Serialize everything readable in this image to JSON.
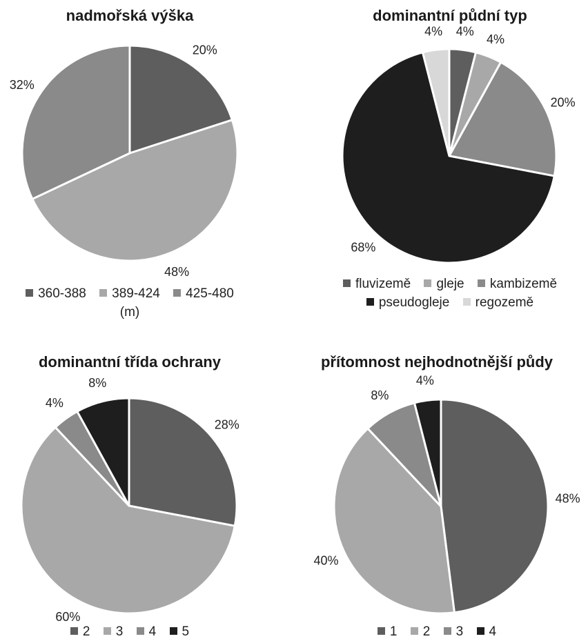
{
  "colors": {
    "dark_gray": "#5e5e5e",
    "light_gray": "#a8a8a8",
    "mid_gray": "#8a8a8a",
    "black": "#1e1e1e",
    "very_light_gray": "#d8d8d8",
    "slice_border": "#ffffff"
  },
  "chart_data": [
    {
      "type": "pie",
      "title": "nadmořská výška",
      "legend_note": "(m)",
      "legend_position": "bottom",
      "categories": [
        "360-388",
        "389-424",
        "425-480"
      ],
      "values": [
        20,
        48,
        32
      ],
      "labels": [
        "20%",
        "48%",
        "32%"
      ],
      "colors": [
        "#5e5e5e",
        "#a8a8a8",
        "#8a8a8a"
      ]
    },
    {
      "type": "pie",
      "title": "dominantní půdní typ",
      "legend_position": "bottom",
      "categories": [
        "fluvizemě",
        "gleje",
        "kambizemě",
        "pseudogleje",
        "regozemě"
      ],
      "values": [
        4,
        4,
        20,
        68,
        4
      ],
      "labels": [
        "4%",
        "4%",
        "20%",
        "68%",
        "4%"
      ],
      "colors": [
        "#5e5e5e",
        "#a8a8a8",
        "#8a8a8a",
        "#1e1e1e",
        "#d8d8d8"
      ]
    },
    {
      "type": "pie",
      "title": "dominantní třída ochrany",
      "legend_position": "bottom",
      "categories": [
        "2",
        "3",
        "4",
        "5"
      ],
      "values": [
        28,
        60,
        4,
        8
      ],
      "labels": [
        "28%",
        "60%",
        "4%",
        "8%"
      ],
      "colors": [
        "#5e5e5e",
        "#a8a8a8",
        "#8a8a8a",
        "#1e1e1e"
      ]
    },
    {
      "type": "pie",
      "title": "přítomnost nejhodnotnější půdy",
      "legend_position": "bottom",
      "categories": [
        "1",
        "2",
        "3",
        "4"
      ],
      "values": [
        48,
        40,
        8,
        4
      ],
      "labels": [
        "48%",
        "40%",
        "8%",
        "4%"
      ],
      "colors": [
        "#5e5e5e",
        "#a8a8a8",
        "#8a8a8a",
        "#1e1e1e"
      ]
    }
  ]
}
